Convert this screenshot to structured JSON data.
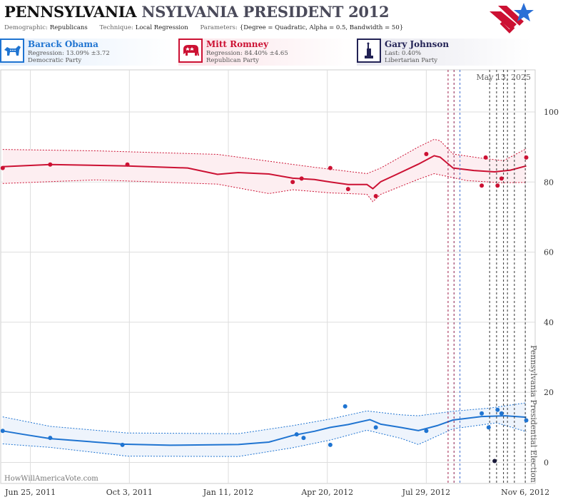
{
  "header": {
    "title_state": "PENNSYLVANIA",
    "title_rest": "NSYLVANIA PRESIDENT 2012",
    "params": [
      {
        "label": "Demographic:",
        "value": "Republicans"
      },
      {
        "label": "Technique:",
        "value": "Local Regression"
      },
      {
        "label": "Parameters:",
        "value": "{Degree = Quadratic, Alpha = 0.5, Bandwidth = 50}"
      }
    ],
    "logo_icon": "star-flag-logo-icon"
  },
  "candidates": [
    {
      "name": "Barack Obama",
      "line1": "Regression: 13.09% ±3.72",
      "line2": "Democratic Party",
      "color": "#1f74d1",
      "icon": "donkey-icon"
    },
    {
      "name": "Mitt Romney",
      "line1": "Regression: 84.40% ±4.65",
      "line2": "Republican Party",
      "color": "#cc1133",
      "icon": "elephant-icon"
    },
    {
      "name": "Gary Johnson",
      "line1": "Last: 0.40%",
      "line2": "Libertarian Party",
      "color": "#222255",
      "icon": "statue-of-liberty-icon"
    }
  ],
  "chart_data": {
    "type": "line",
    "date_annotation": "May 13, 2025",
    "watermark": "HowWillAmericaVote.com",
    "event_label": "Pennsylvania Presidential Election",
    "x_ticks": [
      "Jun 25, 2011",
      "Oct 3, 2011",
      "Jan 11, 2012",
      "Apr 20, 2012",
      "Jul 29, 2012",
      "Nov 6, 2012"
    ],
    "xlim": [
      "2011-05-26",
      "2012-11-16"
    ],
    "y_ticks": [
      0,
      20,
      40,
      60,
      80,
      100
    ],
    "ylim": [
      -6,
      112
    ],
    "grid": true,
    "series": [
      {
        "name": "Mitt Romney",
        "color": "#cc1133",
        "points": [
          {
            "x": "2011-05-28",
            "y": 84
          },
          {
            "x": "2011-07-15",
            "y": 85
          },
          {
            "x": "2011-10-01",
            "y": 85
          },
          {
            "x": "2012-03-16",
            "y": 80
          },
          {
            "x": "2012-03-25",
            "y": 81
          },
          {
            "x": "2012-04-23",
            "y": 84
          },
          {
            "x": "2012-05-11",
            "y": 78
          },
          {
            "x": "2012-06-08",
            "y": 76
          },
          {
            "x": "2012-07-29",
            "y": 88
          },
          {
            "x": "2012-09-23",
            "y": 79
          },
          {
            "x": "2012-09-27",
            "y": 87
          },
          {
            "x": "2012-10-09",
            "y": 79
          },
          {
            "x": "2012-10-13",
            "y": 81
          },
          {
            "x": "2012-11-07",
            "y": 87
          }
        ],
        "trend": [
          {
            "x": "2011-05-28",
            "y": 84.4
          },
          {
            "x": "2011-07-15",
            "y": 85.0
          },
          {
            "x": "2011-10-01",
            "y": 84.6
          },
          {
            "x": "2011-12-01",
            "y": 84.0
          },
          {
            "x": "2011-12-31",
            "y": 82.2
          },
          {
            "x": "2012-01-21",
            "y": 82.7
          },
          {
            "x": "2012-02-21",
            "y": 82.3
          },
          {
            "x": "2012-03-16",
            "y": 81.1
          },
          {
            "x": "2012-04-07",
            "y": 80.7
          },
          {
            "x": "2012-04-23",
            "y": 80.0
          },
          {
            "x": "2012-05-11",
            "y": 79.3
          },
          {
            "x": "2012-05-30",
            "y": 79.3
          },
          {
            "x": "2012-06-05",
            "y": 78.1
          },
          {
            "x": "2012-06-13",
            "y": 80.1
          },
          {
            "x": "2012-06-27",
            "y": 81.9
          },
          {
            "x": "2012-07-21",
            "y": 85.1
          },
          {
            "x": "2012-08-06",
            "y": 87.5
          },
          {
            "x": "2012-08-12",
            "y": 87.1
          },
          {
            "x": "2012-08-25",
            "y": 84.0
          },
          {
            "x": "2012-09-15",
            "y": 83.3
          },
          {
            "x": "2012-10-06",
            "y": 82.9
          },
          {
            "x": "2012-10-22",
            "y": 83.4
          },
          {
            "x": "2012-11-07",
            "y": 84.6
          }
        ],
        "upper": [
          {
            "x": "2011-05-28",
            "y": 89.3
          },
          {
            "x": "2011-08-30",
            "y": 88.9
          },
          {
            "x": "2011-12-31",
            "y": 87.9
          },
          {
            "x": "2012-04-07",
            "y": 84.2
          },
          {
            "x": "2012-05-30",
            "y": 82.4
          },
          {
            "x": "2012-06-13",
            "y": 84.0
          },
          {
            "x": "2012-07-21",
            "y": 90.0
          },
          {
            "x": "2012-08-06",
            "y": 92.2
          },
          {
            "x": "2012-08-12",
            "y": 91.8
          },
          {
            "x": "2012-08-25",
            "y": 88.0
          },
          {
            "x": "2012-09-23",
            "y": 86.8
          },
          {
            "x": "2012-10-15",
            "y": 86.1
          },
          {
            "x": "2012-11-07",
            "y": 89.5
          }
        ],
        "lower": [
          {
            "x": "2011-05-28",
            "y": 79.6
          },
          {
            "x": "2011-08-30",
            "y": 80.6
          },
          {
            "x": "2011-12-31",
            "y": 79.4
          },
          {
            "x": "2012-02-21",
            "y": 76.7
          },
          {
            "x": "2012-03-16",
            "y": 77.8
          },
          {
            "x": "2012-04-23",
            "y": 76.9
          },
          {
            "x": "2012-05-30",
            "y": 76.5
          },
          {
            "x": "2012-06-05",
            "y": 74.4
          },
          {
            "x": "2012-06-13",
            "y": 76.5
          },
          {
            "x": "2012-07-21",
            "y": 80.8
          },
          {
            "x": "2012-08-06",
            "y": 82.4
          },
          {
            "x": "2012-09-08",
            "y": 80.4
          },
          {
            "x": "2012-10-13",
            "y": 79.8
          },
          {
            "x": "2012-11-07",
            "y": 79.9
          }
        ]
      },
      {
        "name": "Barack Obama",
        "color": "#1f74d1",
        "points": [
          {
            "x": "2011-05-28",
            "y": 9
          },
          {
            "x": "2011-07-15",
            "y": 7
          },
          {
            "x": "2011-09-26",
            "y": 5
          },
          {
            "x": "2012-03-20",
            "y": 8
          },
          {
            "x": "2012-03-27",
            "y": 7
          },
          {
            "x": "2012-04-23",
            "y": 5
          },
          {
            "x": "2012-05-08",
            "y": 16
          },
          {
            "x": "2012-06-08",
            "y": 10
          },
          {
            "x": "2012-07-29",
            "y": 9
          },
          {
            "x": "2012-09-23",
            "y": 14
          },
          {
            "x": "2012-09-30",
            "y": 10
          },
          {
            "x": "2012-10-09",
            "y": 15
          },
          {
            "x": "2012-10-13",
            "y": 14
          },
          {
            "x": "2012-11-07",
            "y": 12
          }
        ],
        "trend": [
          {
            "x": "2011-05-28",
            "y": 9.0
          },
          {
            "x": "2011-06-18",
            "y": 8.0
          },
          {
            "x": "2011-07-15",
            "y": 6.8
          },
          {
            "x": "2011-09-26",
            "y": 5.2
          },
          {
            "x": "2011-11-13",
            "y": 4.9
          },
          {
            "x": "2012-01-21",
            "y": 5.1
          },
          {
            "x": "2012-02-21",
            "y": 5.8
          },
          {
            "x": "2012-03-16",
            "y": 7.7
          },
          {
            "x": "2012-04-07",
            "y": 8.9
          },
          {
            "x": "2012-04-23",
            "y": 10.0
          },
          {
            "x": "2012-05-11",
            "y": 10.8
          },
          {
            "x": "2012-06-02",
            "y": 12.2
          },
          {
            "x": "2012-06-13",
            "y": 10.9
          },
          {
            "x": "2012-07-03",
            "y": 10.0
          },
          {
            "x": "2012-07-21",
            "y": 9.1
          },
          {
            "x": "2012-08-09",
            "y": 10.5
          },
          {
            "x": "2012-08-25",
            "y": 12.1
          },
          {
            "x": "2012-09-23",
            "y": 13.1
          },
          {
            "x": "2012-10-17",
            "y": 13.3
          },
          {
            "x": "2012-11-07",
            "y": 12.9
          }
        ],
        "upper": [
          {
            "x": "2011-05-28",
            "y": 13.0
          },
          {
            "x": "2011-07-15",
            "y": 10.3
          },
          {
            "x": "2011-10-01",
            "y": 8.4
          },
          {
            "x": "2012-01-21",
            "y": 8.2
          },
          {
            "x": "2012-03-16",
            "y": 10.5
          },
          {
            "x": "2012-04-23",
            "y": 12.4
          },
          {
            "x": "2012-05-30",
            "y": 14.7
          },
          {
            "x": "2012-07-03",
            "y": 13.6
          },
          {
            "x": "2012-07-21",
            "y": 13.3
          },
          {
            "x": "2012-08-25",
            "y": 14.6
          },
          {
            "x": "2012-10-01",
            "y": 15.5
          },
          {
            "x": "2012-11-07",
            "y": 17.0
          }
        ],
        "lower": [
          {
            "x": "2011-05-28",
            "y": 5.3
          },
          {
            "x": "2011-07-15",
            "y": 4.3
          },
          {
            "x": "2011-10-01",
            "y": 1.8
          },
          {
            "x": "2012-01-21",
            "y": 1.7
          },
          {
            "x": "2012-03-16",
            "y": 4.2
          },
          {
            "x": "2012-04-23",
            "y": 6.4
          },
          {
            "x": "2012-05-30",
            "y": 9.2
          },
          {
            "x": "2012-07-03",
            "y": 6.9
          },
          {
            "x": "2012-07-21",
            "y": 5.1
          },
          {
            "x": "2012-08-25",
            "y": 9.6
          },
          {
            "x": "2012-10-08",
            "y": 11.3
          },
          {
            "x": "2012-11-07",
            "y": 8.8
          }
        ]
      },
      {
        "name": "Gary Johnson",
        "color": "#1a1a3a",
        "points": [
          {
            "x": "2012-10-06",
            "y": 0.4
          }
        ]
      }
    ],
    "poll_date_lines": [
      {
        "x": "2012-08-20",
        "color": "#a0204a"
      },
      {
        "x": "2012-08-26",
        "color": "#8a1a4a"
      },
      {
        "x": "2012-09-01",
        "color": "#3a6ad0"
      },
      {
        "x": "2012-10-01",
        "color": "#333333"
      },
      {
        "x": "2012-10-08",
        "color": "#333333"
      },
      {
        "x": "2012-10-15",
        "color": "#333333"
      },
      {
        "x": "2012-10-19",
        "color": "#333333"
      },
      {
        "x": "2012-10-26",
        "color": "#333333"
      },
      {
        "x": "2012-11-06",
        "color": "#333333"
      }
    ]
  }
}
